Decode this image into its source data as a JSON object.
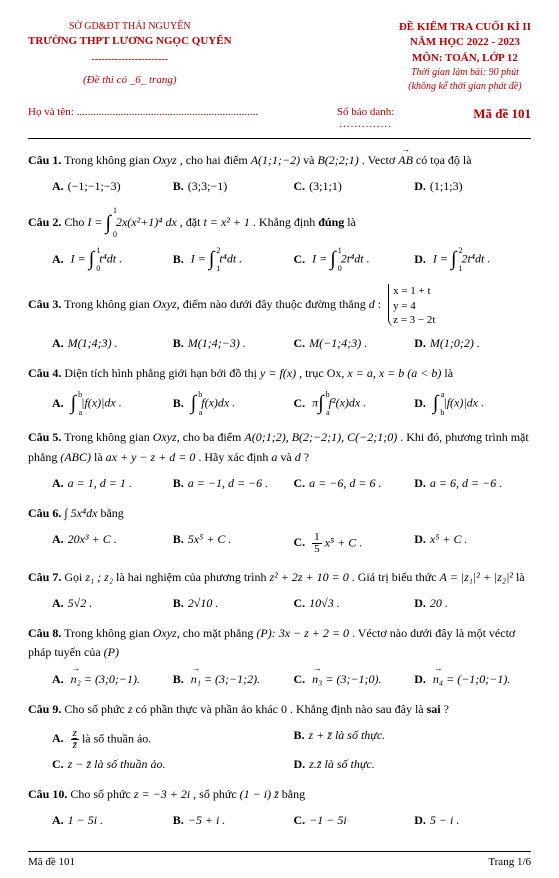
{
  "header": {
    "dept": "SỞ GD&ĐT THÁI NGUYÊN",
    "school": "TRƯỜNG THPT LƯƠNG NGỌC QUYẾN",
    "exam1": "ĐỀ KIỂM TRA CUỐI KÌ II",
    "exam2": "NĂM HỌC 2022 - 2023",
    "exam3": "MÔN: TOÁN, LỚP 12",
    "time": "Thời gian làm bài: 90 phút",
    "note": "(không kể thời gian phát đề)",
    "pages": "(Đề thi có _6_ trang)"
  },
  "info": {
    "name": "Họ và tên: ..................................................................",
    "sbd": "Số báo danh:",
    "dots": "..............",
    "made": "Mã đề 101"
  },
  "q1": {
    "label": "Câu 1.",
    "text1": "Trong không gian ",
    "oxyz": "Oxyz",
    "text2": " , cho hai điểm ",
    "A": "A(1;1;−2)",
    "text3": " và ",
    "B": "B(2;2;1)",
    "text4": " . Vectơ ",
    "AB": "AB",
    "text5": " có tọa độ là",
    "a": "(−1;−1;−3)",
    "b": "(3;3;−1)",
    "c": "(3;1;1)",
    "d": "(1;1;3)"
  },
  "q2": {
    "label": "Câu 2.",
    "text1": "Cho ",
    "text2": " , đặt ",
    "sub": "t = x² + 1",
    "text3": ". Khẳng định ",
    "dung": "đúng",
    "text4": " là"
  },
  "q3": {
    "label": "Câu 3.",
    "text1": "Trong không gian ",
    "oxyz": "Oxyz,",
    "text2": " điểm nào dưới đây thuộc đường thẳng ",
    "d": "d",
    "colon": " : ",
    "s1": "x = 1 + t",
    "s2": "y = 4",
    "s3": "z = 3 − 2t",
    "a": "M(1;4;3) .",
    "b": "M(1;4;−3) .",
    "c": "M(−1;4;3) .",
    "d2": "M(1;0;2) ."
  },
  "q4": {
    "label": "Câu 4.",
    "text1": "Diện tích hình phẳng giới hạn bởi đồ thị ",
    "yf": "y = f(x)",
    "text2": " , trục Ox, ",
    "xa": "x = a, x = b  (a < b)",
    "text3": " là"
  },
  "q5": {
    "label": "Câu 5.",
    "text1": "Trong không gian ",
    "oxyz": "Oxyz,",
    "text2": " cho ba điểm ",
    "pts": "A(0;1;2), B(2;−2;1), C(−2;1;0)",
    "text3": ". Khi đó, phương trình mặt",
    "text4": "phẳng ",
    "abc": "(ABC)",
    "text5": " là ",
    "eq": "ax + y − z + d = 0",
    "text6": ". Hãy xác định ",
    "ad": "a",
    "text7": " và ",
    "dd": "d",
    "qm": " ?",
    "a": "a = 1, d = 1 .",
    "b": "a = −1, d = −6 .",
    "c": "a = −6, d = 6 .",
    "d": "a = 6, d = −6 ."
  },
  "q6": {
    "label": "Câu 6.",
    "int": "∫ 5x⁴dx",
    "text1": " bằng",
    "a": "20x³ + C .",
    "b": "5x⁵ + C .",
    "cn": "1",
    "cd": "5",
    "ct": "x⁵ + C .",
    "d": "x⁵ + C ."
  },
  "q7": {
    "label": "Câu 7.",
    "text1": "Gọi ",
    "z12": "z₁ ; z₂",
    "text2": " là hai nghiệm của phương trình ",
    "eq": "z² + 2z + 10 = 0",
    "text3": " . Giá trị biểu thức ",
    "A": "A = |z₁|² + |z₂|²",
    "text4": " là",
    "a": "5√2 .",
    "b": "2√10 .",
    "c": "10√3 .",
    "d": "20 ."
  },
  "q8": {
    "label": "Câu 8.",
    "text1": "Trong không gian ",
    "oxyz": "Oxyz,",
    "text2": " cho mặt phẳng ",
    "p": "(P): 3x − z + 2 = 0",
    "text3": " . Véctơ nào dưới đây là một véctơ",
    "text4": "pháp tuyến của ",
    "pp": "(P)"
  },
  "q8o": {
    "a1": "n₂",
    "a2": " = (3;0;−1).",
    "b1": "n₁",
    "b2": " = (3;−1;2).",
    "c1": "n₃",
    "c2": " = (3;−1;0).",
    "d1": "n₄",
    "d2": " = (−1;0;−1)."
  },
  "q9": {
    "label": "Câu 9.",
    "text1": "Cho số phức ",
    "z": "z",
    "text2": " có phần thực và phần ảo khác ",
    "zero": "0",
    "text3": " . Khẳng định nào sau đây là ",
    "sai": "sai",
    "qm": "?",
    "an": "z",
    "ad": "z̄",
    "at": " là số thuần ảo.",
    "bt": "z + z̄ là số thực.",
    "ct": "z − z̄ là số thuần ảo.",
    "dt": "z.z̄ là số thực."
  },
  "q10": {
    "label": "Câu 10.",
    "text1": "Cho số phức ",
    "z": "z = −3 + 2i",
    "text2": " , số phức ",
    "e": "(1 − i) z̄",
    "text3": " bằng",
    "a": "1 − 5i .",
    "b": "−5 + i .",
    "c": "−1 − 5i",
    "d": "5 − i ."
  },
  "footer": {
    "left": "Mã đề 101",
    "right": "Trang 1/6"
  },
  "labels": {
    "A": "A.",
    "B": "B.",
    "C": "C.",
    "D": "D."
  }
}
